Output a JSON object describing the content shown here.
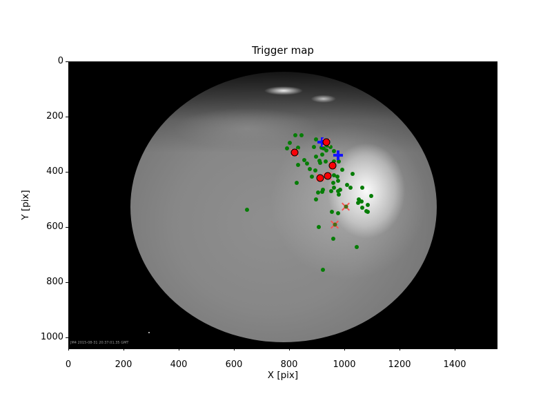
{
  "figure": {
    "background": "#ffffff"
  },
  "image": {
    "description": "grayscale all-sky fisheye camera frame, bright cloud patches upper-centre",
    "timestamp_overlay": "JM4 2015-08-31 20:37:01.35 GMT"
  },
  "chart_data": {
    "type": "scatter",
    "title": "Trigger map",
    "xlabel": "X [pix]",
    "ylabel": "Y [pix]",
    "xlim": [
      0,
      1555
    ],
    "ylim": [
      1042,
      0
    ],
    "y_axis_inverted": true,
    "grid": false,
    "legend": "none",
    "x_ticks": [
      0,
      200,
      400,
      600,
      800,
      1000,
      1200,
      1400
    ],
    "y_ticks": [
      0,
      200,
      400,
      600,
      800,
      1000
    ],
    "series": [
      {
        "name": "trigger-dots",
        "marker": "dot",
        "color": "#067d06",
        "points": [
          [
            820,
            265
          ],
          [
            843,
            265
          ],
          [
            895,
            280
          ],
          [
            800,
            293
          ],
          [
            790,
            313
          ],
          [
            830,
            310
          ],
          [
            888,
            308
          ],
          [
            915,
            310
          ],
          [
            935,
            303
          ],
          [
            948,
            308
          ],
          [
            960,
            323
          ],
          [
            923,
            313
          ],
          [
            933,
            320
          ],
          [
            918,
            335
          ],
          [
            895,
            343
          ],
          [
            908,
            358
          ],
          [
            930,
            360
          ],
          [
            978,
            360
          ],
          [
            960,
            360
          ],
          [
            853,
            355
          ],
          [
            830,
            373
          ],
          [
            863,
            368
          ],
          [
            873,
            388
          ],
          [
            893,
            393
          ],
          [
            910,
            365
          ],
          [
            990,
            390
          ],
          [
            880,
            415
          ],
          [
            960,
            410
          ],
          [
            973,
            415
          ],
          [
            975,
            430
          ],
          [
            958,
            438
          ],
          [
            825,
            438
          ],
          [
            1028,
            405
          ],
          [
            1008,
            445
          ],
          [
            1020,
            455
          ],
          [
            960,
            455
          ],
          [
            975,
            468
          ],
          [
            983,
            463
          ],
          [
            920,
            463
          ],
          [
            903,
            473
          ],
          [
            918,
            470
          ],
          [
            950,
            468
          ],
          [
            978,
            480
          ],
          [
            895,
            498
          ],
          [
            1063,
            455
          ],
          [
            1095,
            485
          ],
          [
            1050,
            498
          ],
          [
            1060,
            505
          ],
          [
            1048,
            510
          ],
          [
            1083,
            518
          ],
          [
            1063,
            528
          ],
          [
            1083,
            543
          ],
          [
            1078,
            540
          ],
          [
            953,
            543
          ],
          [
            975,
            548
          ],
          [
            905,
            598
          ],
          [
            958,
            640
          ],
          [
            1043,
            670
          ],
          [
            920,
            753
          ],
          [
            645,
            535
          ]
        ]
      },
      {
        "name": "blue-plus-markers",
        "marker": "plus",
        "color": "#1414ff",
        "points": [
          [
            918,
            289
          ],
          [
            976,
            338
          ]
        ]
      },
      {
        "name": "red-x-markers",
        "marker": "x",
        "color": "#ff5252",
        "center_dot_color": "#4e6b14",
        "points": [
          [
            1003,
            523
          ],
          [
            963,
            589
          ]
        ]
      },
      {
        "name": "event-circles",
        "marker": "circle",
        "color": "#fb0007",
        "edge": "#000000",
        "underlay_x_color": "#ff6b6b",
        "points": [
          [
            932,
            290
          ],
          [
            817,
            328
          ],
          [
            955,
            376
          ],
          [
            937,
            413
          ],
          [
            911,
            419
          ]
        ]
      }
    ]
  }
}
